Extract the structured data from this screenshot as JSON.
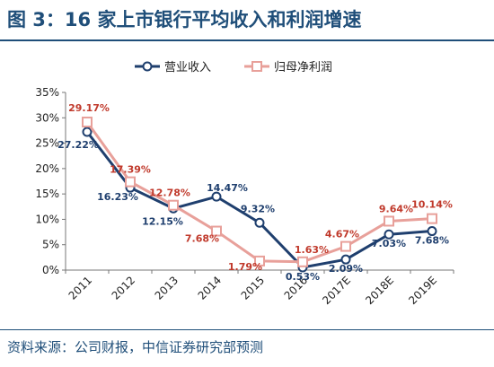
{
  "figure": {
    "title": "图 3：16 家上市银行平均收入和利润增速",
    "source": "资料来源：公司财报，中信证券研究部预测"
  },
  "chart_data": {
    "type": "line",
    "categories": [
      "2011",
      "2012",
      "2013",
      "2014",
      "2015",
      "2016",
      "2017E",
      "2018E",
      "2019E"
    ],
    "ylim": [
      0,
      35
    ],
    "yticks": [
      "0%",
      "5%",
      "10%",
      "15%",
      "20%",
      "25%",
      "30%",
      "35%"
    ],
    "legend_position": "top",
    "series": [
      {
        "name": "营业收入",
        "color": "#1f3f6e",
        "marker": "circle",
        "values": [
          27.22,
          16.23,
          12.15,
          14.47,
          9.32,
          0.53,
          2.09,
          7.03,
          7.68
        ],
        "labels": [
          "27.22%",
          "16.23%",
          "12.15%",
          "14.47%",
          "9.32%",
          "0.53%",
          "2.09%",
          "7.03%",
          "7.68%"
        ]
      },
      {
        "name": "归母净利润",
        "color": "#e8a09a",
        "label_color": "#c0392b",
        "marker": "square",
        "values": [
          29.17,
          17.39,
          12.78,
          7.68,
          1.79,
          1.63,
          4.67,
          9.64,
          10.14
        ],
        "labels": [
          "29.17%",
          "17.39%",
          "12.78%",
          "7.68%",
          "1.79%",
          "1.63%",
          "4.67%",
          "9.64%",
          "10.14%"
        ]
      }
    ]
  }
}
